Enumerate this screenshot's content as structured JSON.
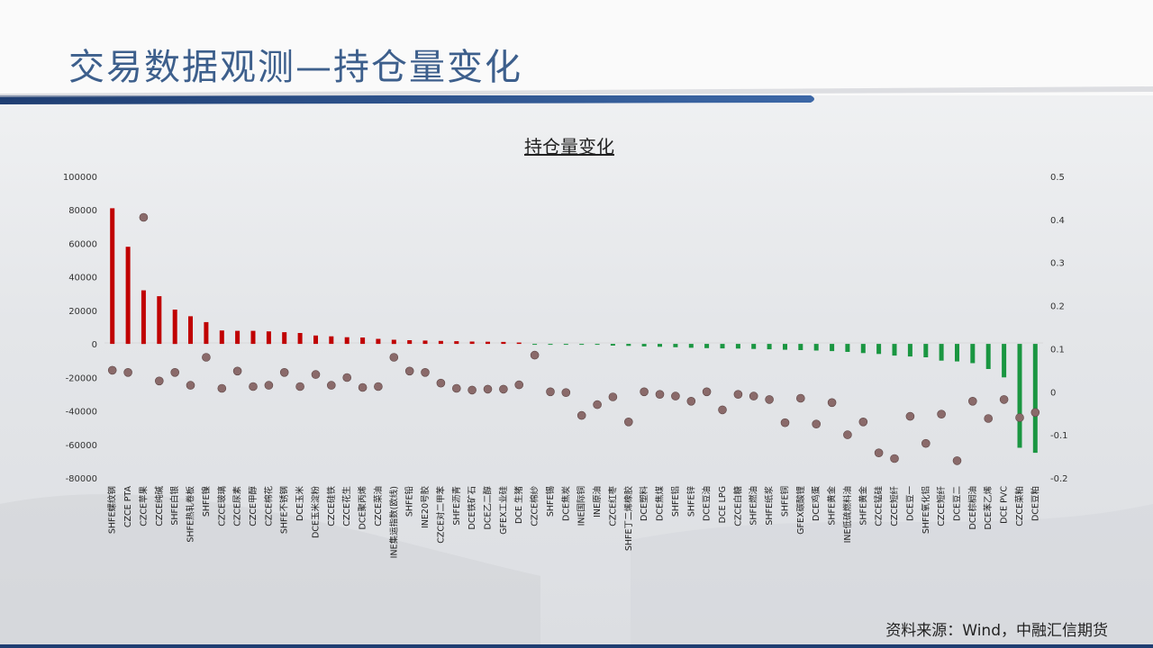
{
  "page": {
    "title": "交易数据观测—持仓量变化",
    "source": "资料来源：Wind，中融汇信期货"
  },
  "chart_data": {
    "type": "bar",
    "title": "持仓量变化",
    "xlabel": "",
    "ylabel": "",
    "y_left_lim": [
      -80000,
      100000
    ],
    "y_left_ticks": [
      100000,
      80000,
      60000,
      40000,
      20000,
      0,
      -20000,
      -40000,
      -60000,
      -80000
    ],
    "y_right_lim": [
      -0.2,
      0.5
    ],
    "y_right_ticks": [
      0.5,
      0.4,
      0.3,
      0.2,
      0.1,
      0,
      -0.1,
      -0.2
    ],
    "positive_color": "#c00000",
    "negative_color": "#1a9641",
    "marker_color": "#8a6a6a",
    "grid": false,
    "legend": "none",
    "categories": [
      "SHFE螺纹钢",
      "CZCE PTA",
      "CZCE苹果",
      "CZCE纯碱",
      "SHFE白银",
      "SHFE热轧卷板",
      "SHFE镍",
      "CZCE玻璃",
      "CZCE尿素",
      "CZCE甲醇",
      "CZCE棉花",
      "SHFE不锈钢",
      "DCE玉米",
      "DCE玉米淀粉",
      "CZCE硅铁",
      "CZCE花生",
      "DCE聚丙烯",
      "CZCE菜油",
      "INE集运指数(欧线)",
      "SHFE铅",
      "INE20号胶",
      "CZCE对二甲苯",
      "SHFE沥青",
      "DCE铁矿石",
      "DCE乙二醇",
      "GFEX工业硅",
      "DCE 生猪",
      "CZCE棉纱",
      "SHFE锡",
      "DCE焦炭",
      "INE国际铜",
      "INE原油",
      "CZCE红枣",
      "SHFE丁二烯橡胶",
      "DCE塑料",
      "DCE焦煤",
      "SHFE铝",
      "SHFE锌",
      "DCE豆油",
      "DCE LPG",
      "CZCE白糖",
      "SHFE燃油",
      "SHFE纸浆",
      "SHFE铜",
      "GFEX碳酸锂",
      "DCE鸡蛋",
      "SHFE黄金",
      "INE低硫燃料油",
      "SHFE黄金",
      "CZCE锰硅",
      "CZCE短纤",
      "DCE豆一",
      "SHFE氧化铝",
      "CZCE短纤",
      "DCE豆二",
      "DCE棕榈油",
      "DCE苯乙烯",
      "DCE PVC",
      "CZCE菜粕",
      "DCE豆粕"
    ],
    "series": [
      {
        "axis": "left",
        "values": [
          81000,
          58000,
          32000,
          28500,
          20500,
          16500,
          13000,
          8000,
          7800,
          7800,
          7500,
          7000,
          6500,
          5000,
          4500,
          4000,
          3800,
          3000,
          2500,
          2200,
          2000,
          1800,
          1600,
          1400,
          1300,
          1200,
          800,
          -100,
          -200,
          -300,
          -400,
          -500,
          -1000,
          -1200,
          -1500,
          -1700,
          -2000,
          -2300,
          -2500,
          -2700,
          -2800,
          -3000,
          -3200,
          -3500,
          -3700,
          -4000,
          -4300,
          -4800,
          -5500,
          -6000,
          -7000,
          -7500,
          -8000,
          -10000,
          -10500,
          -11500,
          -15000,
          -20000,
          -62000,
          -65000
        ]
      },
      {
        "axis": "right",
        "values": [
          0.05,
          0.045,
          0.405,
          0.025,
          0.045,
          0.015,
          0.08,
          0.008,
          0.048,
          0.012,
          0.015,
          0.045,
          0.012,
          0.04,
          0.015,
          0.033,
          0.01,
          0.012,
          0.08,
          0.048,
          0.045,
          0.02,
          0.008,
          0.004,
          0.006,
          0.006,
          0.016,
          0.085,
          0.0,
          -0.002,
          -0.055,
          -0.03,
          -0.012,
          -0.07,
          0.0,
          -0.006,
          -0.01,
          -0.022,
          0.0,
          -0.042,
          -0.006,
          -0.01,
          -0.018,
          -0.072,
          -0.015,
          -0.075,
          -0.025,
          -0.1,
          -0.07,
          -0.142,
          -0.155,
          -0.057,
          -0.12,
          -0.052,
          -0.16,
          -0.022,
          -0.062,
          -0.018,
          -0.06,
          -0.048
        ]
      }
    ]
  }
}
